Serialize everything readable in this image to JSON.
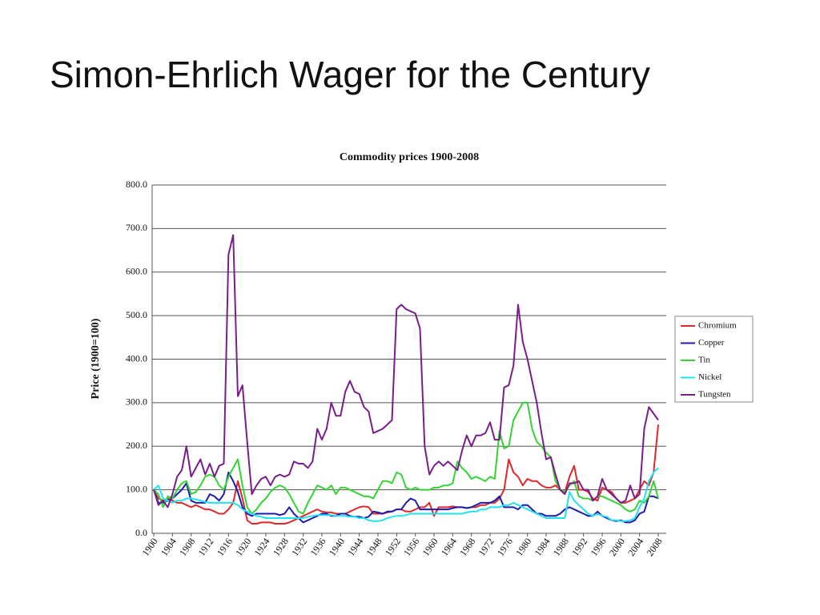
{
  "slide_title": "Simon-Ehrlich Wager for the Century",
  "chart_data": {
    "type": "line",
    "title": "Commodity prices 1900-2008",
    "ylabel": "Price (1900=100)",
    "x": [
      1900,
      1901,
      1902,
      1903,
      1904,
      1905,
      1906,
      1907,
      1908,
      1909,
      1910,
      1911,
      1912,
      1913,
      1914,
      1915,
      1916,
      1917,
      1918,
      1919,
      1920,
      1921,
      1922,
      1923,
      1924,
      1925,
      1926,
      1927,
      1928,
      1929,
      1930,
      1931,
      1932,
      1933,
      1934,
      1935,
      1936,
      1937,
      1938,
      1939,
      1940,
      1941,
      1942,
      1943,
      1944,
      1945,
      1946,
      1947,
      1948,
      1949,
      1950,
      1951,
      1952,
      1953,
      1954,
      1955,
      1956,
      1957,
      1958,
      1959,
      1960,
      1961,
      1962,
      1963,
      1964,
      1965,
      1966,
      1967,
      1968,
      1969,
      1970,
      1971,
      1972,
      1973,
      1974,
      1975,
      1976,
      1977,
      1978,
      1979,
      1980,
      1981,
      1982,
      1983,
      1984,
      1985,
      1986,
      1987,
      1988,
      1989,
      1990,
      1991,
      1992,
      1993,
      1994,
      1995,
      1996,
      1997,
      1998,
      1999,
      2000,
      2001,
      2002,
      2003,
      2004,
      2005,
      2006,
      2007,
      2008
    ],
    "xlim": [
      1900,
      2008
    ],
    "xticks": [
      1900,
      1904,
      1908,
      1912,
      1916,
      1920,
      1924,
      1928,
      1932,
      1936,
      1940,
      1944,
      1948,
      1952,
      1956,
      1960,
      1964,
      1968,
      1972,
      1976,
      1980,
      1984,
      1988,
      1992,
      1996,
      2000,
      2004,
      2008
    ],
    "ylim": [
      0,
      800
    ],
    "yticks": [
      {
        "value": 0,
        "label": "0.0"
      },
      {
        "value": 100,
        "label": "100.0"
      },
      {
        "value": 200,
        "label": "200.0"
      },
      {
        "value": 300,
        "label": "300.0"
      },
      {
        "value": 400,
        "label": "400.0"
      },
      {
        "value": 500,
        "label": "500.0"
      },
      {
        "value": 600,
        "label": "600.0"
      },
      {
        "value": 700,
        "label": "700.0"
      },
      {
        "value": 800,
        "label": "800.0"
      }
    ],
    "grid": true,
    "legend": "right",
    "series": [
      {
        "name": "Chromium",
        "color": "#e02828",
        "values": [
          100,
          80,
          75,
          80,
          75,
          70,
          70,
          65,
          60,
          65,
          60,
          55,
          55,
          50,
          45,
          45,
          55,
          70,
          120,
          80,
          30,
          22,
          22,
          25,
          25,
          25,
          22,
          22,
          22,
          25,
          30,
          35,
          40,
          45,
          50,
          55,
          50,
          48,
          48,
          45,
          45,
          45,
          50,
          55,
          60,
          62,
          60,
          45,
          45,
          45,
          48,
          50,
          55,
          55,
          50,
          50,
          55,
          60,
          60,
          70,
          40,
          60,
          60,
          60,
          62,
          60,
          60,
          58,
          60,
          60,
          65,
          65,
          70,
          70,
          80,
          100,
          170,
          140,
          130,
          110,
          125,
          120,
          120,
          110,
          105,
          105,
          110,
          100,
          95,
          130,
          155,
          100,
          100,
          95,
          80,
          75,
          105,
          100,
          95,
          80,
          70,
          70,
          75,
          80,
          100,
          120,
          110,
          140,
          250
        ]
      },
      {
        "name": "Copper",
        "color": "#1c1cae",
        "values": [
          100,
          70,
          70,
          75,
          80,
          90,
          100,
          115,
          75,
          70,
          70,
          70,
          90,
          85,
          75,
          90,
          140,
          120,
          95,
          60,
          45,
          40,
          45,
          45,
          45,
          45,
          45,
          42,
          45,
          60,
          45,
          35,
          25,
          30,
          35,
          40,
          45,
          45,
          40,
          40,
          45,
          45,
          40,
          38,
          38,
          35,
          38,
          50,
          48,
          45,
          50,
          50,
          55,
          55,
          70,
          80,
          75,
          55,
          55,
          55,
          55,
          55,
          55,
          55,
          58,
          60,
          60,
          58,
          60,
          65,
          70,
          70,
          70,
          75,
          85,
          60,
          60,
          60,
          55,
          65,
          65,
          55,
          45,
          45,
          40,
          40,
          40,
          45,
          55,
          60,
          55,
          50,
          45,
          40,
          40,
          50,
          40,
          35,
          30,
          28,
          30,
          25,
          25,
          30,
          45,
          50,
          85,
          85,
          80
        ]
      },
      {
        "name": "Tin",
        "color": "#33d433",
        "values": [
          100,
          90,
          60,
          85,
          80,
          100,
          115,
          120,
          90,
          95,
          110,
          130,
          135,
          130,
          110,
          100,
          130,
          150,
          170,
          110,
          60,
          45,
          55,
          70,
          80,
          95,
          105,
          110,
          105,
          90,
          70,
          50,
          45,
          70,
          90,
          110,
          105,
          100,
          110,
          90,
          105,
          105,
          100,
          95,
          90,
          85,
          85,
          80,
          100,
          120,
          120,
          115,
          140,
          135,
          105,
          100,
          105,
          100,
          100,
          100,
          105,
          105,
          110,
          110,
          115,
          165,
          150,
          140,
          125,
          130,
          125,
          120,
          130,
          125,
          235,
          195,
          200,
          260,
          280,
          300,
          300,
          240,
          210,
          200,
          185,
          175,
          120,
          100,
          95,
          110,
          120,
          85,
          80,
          80,
          75,
          85,
          85,
          80,
          75,
          70,
          65,
          55,
          50,
          55,
          75,
          70,
          85,
          120,
          80
        ]
      },
      {
        "name": "Nickel",
        "color": "#22e2f2",
        "values": [
          100,
          110,
          80,
          75,
          70,
          75,
          75,
          80,
          80,
          78,
          75,
          72,
          70,
          70,
          70,
          70,
          70,
          70,
          65,
          55,
          50,
          45,
          40,
          38,
          35,
          35,
          35,
          35,
          35,
          35,
          35,
          35,
          35,
          38,
          40,
          42,
          42,
          42,
          42,
          40,
          40,
          40,
          38,
          38,
          35,
          35,
          30,
          28,
          28,
          30,
          35,
          38,
          40,
          40,
          42,
          45,
          45,
          45,
          45,
          45,
          45,
          45,
          45,
          45,
          45,
          45,
          45,
          48,
          50,
          50,
          55,
          55,
          60,
          60,
          60,
          65,
          65,
          70,
          65,
          60,
          55,
          50,
          45,
          40,
          35,
          35,
          35,
          35,
          35,
          95,
          75,
          65,
          55,
          45,
          40,
          45,
          40,
          38,
          30,
          30,
          28,
          28,
          30,
          35,
          60,
          80,
          120,
          140,
          150
        ]
      },
      {
        "name": "Tungsten",
        "color": "#7b1c8c",
        "values": [
          100,
          65,
          75,
          60,
          90,
          130,
          145,
          200,
          130,
          150,
          170,
          135,
          160,
          130,
          155,
          160,
          640,
          685,
          315,
          340,
          210,
          90,
          110,
          125,
          130,
          110,
          130,
          135,
          130,
          135,
          165,
          160,
          160,
          150,
          165,
          240,
          215,
          240,
          300,
          270,
          270,
          325,
          350,
          325,
          320,
          290,
          280,
          230,
          235,
          240,
          250,
          260,
          515,
          525,
          515,
          510,
          505,
          470,
          200,
          135,
          155,
          165,
          155,
          165,
          155,
          145,
          190,
          225,
          200,
          225,
          225,
          230,
          255,
          215,
          215,
          335,
          340,
          385,
          525,
          440,
          400,
          350,
          300,
          230,
          170,
          175,
          135,
          100,
          90,
          115,
          115,
          120,
          100,
          100,
          75,
          85,
          125,
          100,
          90,
          80,
          70,
          75,
          110,
          80,
          90,
          240,
          290,
          275,
          260
        ]
      }
    ]
  }
}
